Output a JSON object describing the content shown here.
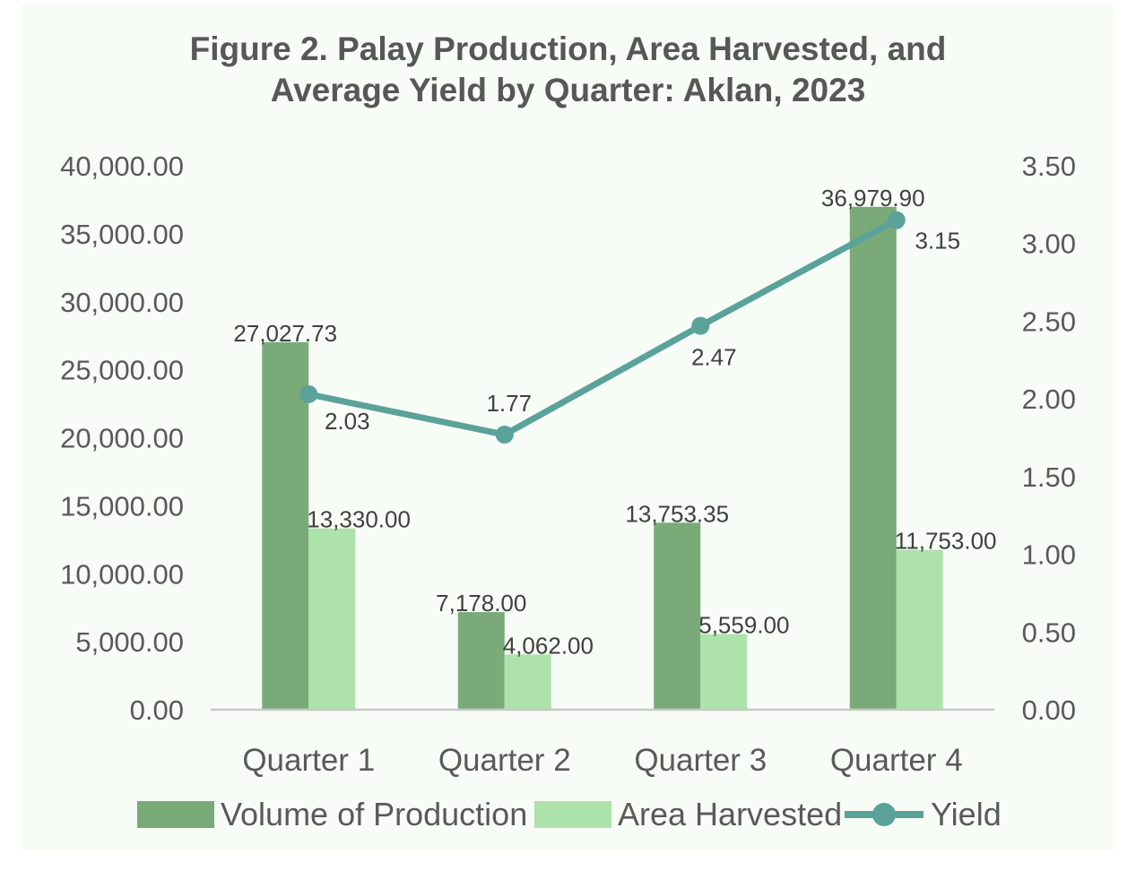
{
  "title_lines": [
    "Figure 2. Palay Production, Area Harvested, and",
    "Average Yield by Quarter: Aklan, 2023"
  ],
  "colors": {
    "production": "#7aaa78",
    "area": "#aee2ab",
    "yield": "#5aa29a",
    "axis": "#c8c8c8",
    "background": "#f7fcf6"
  },
  "chart_data": {
    "type": "bar",
    "title": "Figure 2. Palay Production, Area Harvested, and Average Yield by Quarter: Aklan, 2023",
    "categories": [
      "Quarter 1",
      "Quarter 2",
      "Quarter 3",
      "Quarter 4"
    ],
    "series": [
      {
        "name": "Volume of Production",
        "type": "bar",
        "axis": "left",
        "values": [
          27027.73,
          7178.0,
          13753.35,
          36979.9
        ],
        "labels": [
          "27,027.73",
          "7,178.00",
          "13,753.35",
          "36,979.90"
        ]
      },
      {
        "name": "Area Harvested",
        "type": "bar",
        "axis": "left",
        "values": [
          13330.0,
          4062.0,
          5559.0,
          11753.0
        ],
        "labels": [
          "13,330.00",
          "4,062.00",
          "5,559.00",
          "11,753.00"
        ]
      },
      {
        "name": "Yield",
        "type": "line",
        "axis": "right",
        "values": [
          2.03,
          1.77,
          2.47,
          3.15
        ],
        "labels": [
          "2.03",
          "1.77",
          "2.47",
          "3.15"
        ]
      }
    ],
    "y_left": {
      "min": 0,
      "max": 40000,
      "step": 5000,
      "tick_labels": [
        "0.00",
        "5,000.00",
        "10,000.00",
        "15,000.00",
        "20,000.00",
        "25,000.00",
        "30,000.00",
        "35,000.00",
        "40,000.00"
      ]
    },
    "y_right": {
      "min": 0,
      "max": 3.5,
      "step": 0.5,
      "tick_labels": [
        "0.00",
        "0.50",
        "1.00",
        "1.50",
        "2.00",
        "2.50",
        "3.00",
        "3.50"
      ]
    },
    "grid": false,
    "legend_position": "bottom"
  },
  "legend": [
    {
      "label": "Volume of Production"
    },
    {
      "label": "Area Harvested"
    },
    {
      "label": "Yield"
    }
  ]
}
